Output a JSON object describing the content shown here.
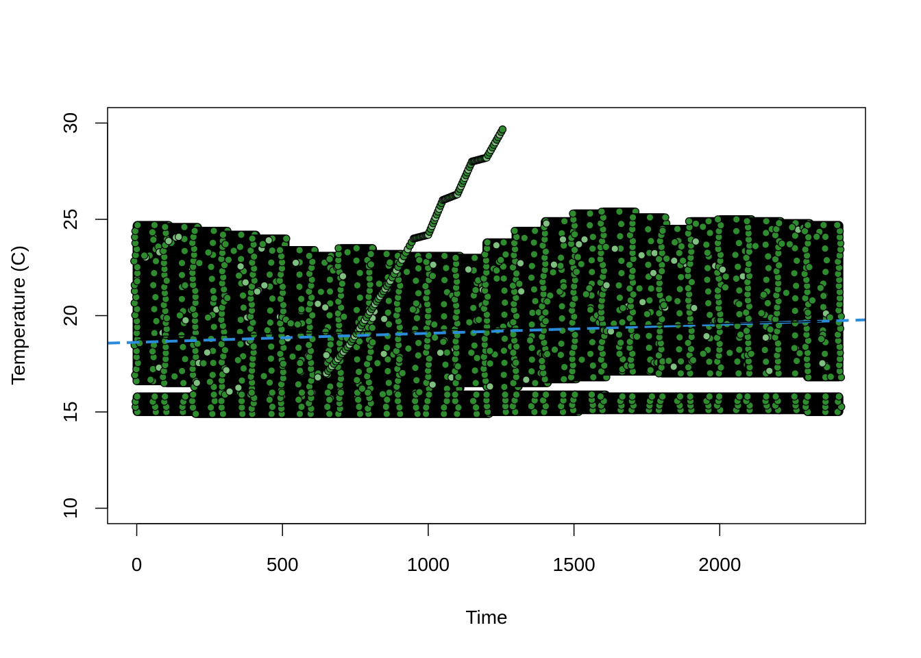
{
  "chart_data": {
    "type": "scatter",
    "title": "",
    "xlabel": "Time",
    "ylabel": "Temperature (C)",
    "xlim": [
      -100,
      2500
    ],
    "ylim": [
      9.2,
      30.8
    ],
    "x_ticks": [
      0,
      500,
      1000,
      1500,
      2000
    ],
    "x_tick_labels": [
      "0",
      "500",
      "1000",
      "1500",
      "2000"
    ],
    "y_ticks": [
      10,
      15,
      20,
      25,
      30
    ],
    "y_tick_labels": [
      "10",
      "15",
      "20",
      "25",
      "30"
    ],
    "grid": false,
    "legend": "none",
    "colors": {
      "point_fill": "#2e8b2e",
      "point_fill_light": "#7fbf7f",
      "point_stroke": "#000000",
      "trend_line": "#2b8cdb",
      "fit_line": "#000000"
    },
    "series": [
      {
        "kind": "point-clusters",
        "cluster_width": 110,
        "clusters": [
          {
            "x0": 0,
            "upper": [
              16.6,
              24.7
            ],
            "lower": [
              15.0,
              15.8
            ]
          },
          {
            "x0": 100,
            "upper": [
              16.5,
              24.6
            ],
            "lower": [
              15.0,
              15.8
            ]
          },
          {
            "x0": 200,
            "upper": [
              16.3,
              24.4
            ],
            "lower": [
              14.9,
              15.9
            ]
          },
          {
            "x0": 300,
            "upper": [
              16.0,
              24.2
            ],
            "lower": [
              14.9,
              15.9
            ]
          },
          {
            "x0": 400,
            "upper": [
              15.9,
              24.0
            ],
            "lower": [
              14.9,
              16.0
            ]
          },
          {
            "x0": 500,
            "upper": [
              15.8,
              23.4
            ],
            "lower": [
              14.9,
              16.0
            ]
          },
          {
            "x0": 600,
            "upper": [
              15.7,
              23.1
            ],
            "lower": [
              14.9,
              16.0
            ]
          },
          {
            "x0": 700,
            "upper": [
              15.8,
              23.5
            ],
            "lower": [
              14.9,
              16.0
            ]
          },
          {
            "x0": 800,
            "upper": [
              15.9,
              23.2
            ],
            "lower": [
              14.9,
              16.0
            ]
          },
          {
            "x0": 900,
            "upper": [
              16.0,
              23.1
            ],
            "lower": [
              14.9,
              15.9
            ]
          },
          {
            "x0": 1000,
            "upper": [
              16.2,
              23.1
            ],
            "lower": [
              14.9,
              15.9
            ]
          },
          {
            "x0": 1100,
            "upper": [
              16.5,
              23.0
            ],
            "lower": [
              14.9,
              15.9
            ]
          },
          {
            "x0": 1200,
            "upper": [
              16.3,
              23.8
            ],
            "lower": [
              15.0,
              15.9
            ]
          },
          {
            "x0": 1300,
            "upper": [
              16.5,
              24.4
            ],
            "lower": [
              15.0,
              15.9
            ]
          },
          {
            "x0": 1400,
            "upper": [
              16.7,
              24.9
            ],
            "lower": [
              15.0,
              15.9
            ]
          },
          {
            "x0": 1500,
            "upper": [
              16.8,
              25.3
            ],
            "lower": [
              15.1,
              15.9
            ]
          },
          {
            "x0": 1600,
            "upper": [
              17.1,
              25.4
            ],
            "lower": [
              15.1,
              15.8
            ]
          },
          {
            "x0": 1700,
            "upper": [
              17.1,
              25.1
            ],
            "lower": [
              15.1,
              15.8
            ]
          },
          {
            "x0": 1800,
            "upper": [
              17.0,
              24.5
            ],
            "lower": [
              15.1,
              15.8
            ]
          },
          {
            "x0": 1900,
            "upper": [
              17.0,
              24.9
            ],
            "lower": [
              15.1,
              15.8
            ]
          },
          {
            "x0": 2000,
            "upper": [
              17.0,
              25.0
            ],
            "lower": [
              15.1,
              15.8
            ]
          },
          {
            "x0": 2100,
            "upper": [
              17.0,
              24.9
            ],
            "lower": [
              15.1,
              15.8
            ]
          },
          {
            "x0": 2200,
            "upper": [
              17.0,
              24.8
            ],
            "lower": [
              15.1,
              15.8
            ]
          },
          {
            "x0": 2300,
            "upper": [
              16.8,
              24.7
            ],
            "lower": [
              15.0,
              15.8
            ]
          }
        ]
      },
      {
        "kind": "ramp",
        "points": [
          [
            650,
            17.0
          ],
          [
            730,
            18.5
          ],
          [
            800,
            20.2
          ],
          [
            870,
            21.8
          ],
          [
            950,
            24.0
          ],
          [
            1000,
            24.2
          ],
          [
            1050,
            26.0
          ],
          [
            1100,
            26.3
          ],
          [
            1150,
            28.0
          ],
          [
            1200,
            28.2
          ],
          [
            1260,
            29.8
          ]
        ]
      }
    ],
    "lines": [
      {
        "kind": "dashed",
        "x": [
          -100,
          2500
        ],
        "y": [
          18.57,
          19.78
        ]
      },
      {
        "kind": "solid",
        "x": [
          0,
          2350
        ],
        "y": [
          18.9,
          19.7
        ]
      }
    ]
  }
}
